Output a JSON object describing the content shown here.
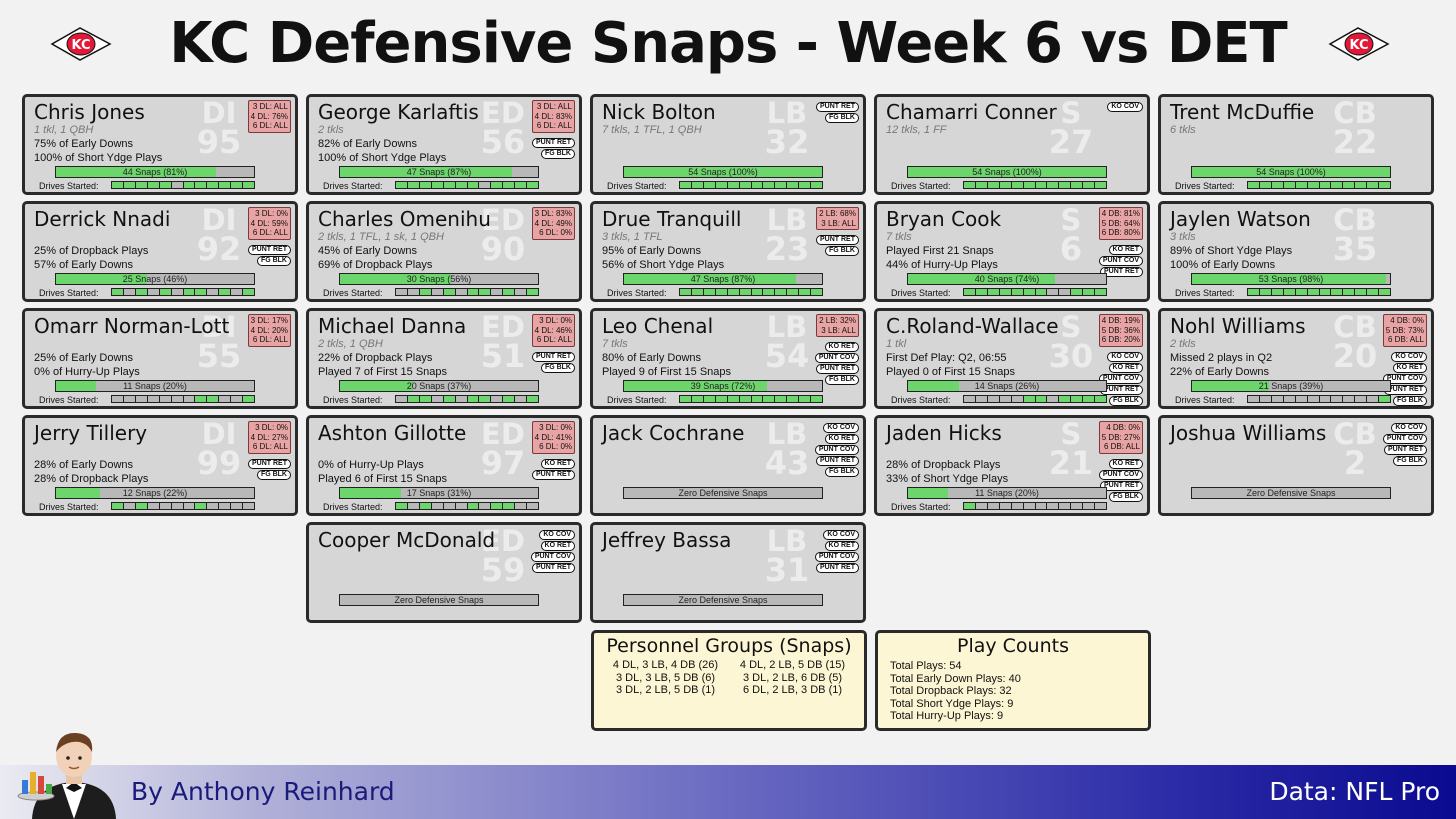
{
  "title": "KC Defensive Snaps - Week 6 vs DET",
  "drives_label": "Drives Started:",
  "players": [
    {
      "name": "Chris Jones",
      "stats": "1 tkl, 1 QBH",
      "notes": [
        "75% of Early Downs",
        "100% of Short Ydge Plays"
      ],
      "bar_label": "44 Snaps (81%)",
      "snap_fraction": 0.81,
      "pos": "DI",
      "number": "95",
      "alignment": [
        "3 DL: ALL",
        "4 DL: 76%",
        "6 DL: ALL"
      ],
      "special_teams": [],
      "drives": [
        1,
        1,
        1,
        1,
        1,
        0,
        1,
        1,
        1,
        1,
        1,
        1
      ],
      "col": 0,
      "row": 0
    },
    {
      "name": "George Karlaftis",
      "stats": "2 tkls",
      "notes": [
        "82% of Early Downs",
        "100% of Short Ydge Plays"
      ],
      "bar_label": "47 Snaps (87%)",
      "snap_fraction": 0.87,
      "pos": "ED",
      "number": "56",
      "alignment": [
        "3 DL: ALL",
        "4 DL: 83%",
        "6 DL: ALL"
      ],
      "special_teams": [
        "PUNT RET",
        "FG BLK"
      ],
      "drives": [
        1,
        1,
        1,
        1,
        1,
        1,
        1,
        0,
        1,
        1,
        1,
        1
      ],
      "col": 1,
      "row": 0
    },
    {
      "name": "Nick Bolton",
      "stats": "7 tkls, 1 TFL, 1 QBH",
      "notes": [],
      "bar_label": "54 Snaps (100%)",
      "snap_fraction": 1.0,
      "pos": "LB",
      "number": "32",
      "alignment": [],
      "special_teams": [
        "PUNT RET",
        "FG BLK"
      ],
      "drives": [
        1,
        1,
        1,
        1,
        1,
        1,
        1,
        1,
        1,
        1,
        1,
        1
      ],
      "col": 2,
      "row": 0
    },
    {
      "name": "Chamarri Conner",
      "stats": "12 tkls, 1 FF",
      "notes": [],
      "bar_label": "54 Snaps (100%)",
      "snap_fraction": 1.0,
      "pos": "S",
      "number": "27",
      "alignment": [],
      "special_teams": [
        "KO COV"
      ],
      "drives": [
        1,
        1,
        1,
        1,
        1,
        1,
        1,
        1,
        1,
        1,
        1,
        1
      ],
      "col": 3,
      "row": 0
    },
    {
      "name": "Trent McDuffie",
      "stats": "6 tkls",
      "notes": [],
      "bar_label": "54 Snaps (100%)",
      "snap_fraction": 1.0,
      "pos": "CB",
      "number": "22",
      "alignment": [],
      "special_teams": [],
      "drives": [
        1,
        1,
        1,
        1,
        1,
        1,
        1,
        1,
        1,
        1,
        1,
        1
      ],
      "col": 4,
      "row": 0
    },
    {
      "name": "Derrick Nnadi",
      "stats": "",
      "notes": [
        "25% of Dropback Plays",
        "57% of Early Downs"
      ],
      "bar_label": "25 Snaps (46%)",
      "snap_fraction": 0.46,
      "pos": "DI",
      "number": "92",
      "alignment": [
        "3 DL:  0%",
        "4 DL: 59%",
        "6 DL: ALL"
      ],
      "special_teams": [
        "PUNT RET",
        "FG BLK"
      ],
      "drives": [
        1,
        0,
        1,
        0,
        1,
        0,
        1,
        1,
        0,
        1,
        0,
        1
      ],
      "col": 0,
      "row": 1
    },
    {
      "name": "Charles Omenihu",
      "stats": "2 tkls, 1 TFL, 1 sk, 1 QBH",
      "notes": [
        "45% of Early Downs",
        "69% of Dropback Plays"
      ],
      "bar_label": "30 Snaps (56%)",
      "snap_fraction": 0.56,
      "pos": "ED",
      "number": "90",
      "alignment": [
        "3 DL: 83%",
        "4 DL: 49%",
        "6 DL:  0%"
      ],
      "special_teams": [],
      "drives": [
        0,
        0,
        1,
        0,
        1,
        0,
        1,
        1,
        0,
        1,
        0,
        1
      ],
      "col": 1,
      "row": 1
    },
    {
      "name": "Drue Tranquill",
      "stats": "3 tkls, 1 TFL",
      "notes": [
        "95% of Early Downs",
        "56% of Short Ydge Plays"
      ],
      "bar_label": "47 Snaps (87%)",
      "snap_fraction": 0.87,
      "pos": "LB",
      "number": "23",
      "alignment": [
        "2 LB: 68%",
        "3 LB: ALL"
      ],
      "special_teams": [
        "PUNT RET",
        "FG BLK"
      ],
      "drives": [
        1,
        1,
        1,
        1,
        1,
        1,
        1,
        1,
        1,
        1,
        1,
        1
      ],
      "col": 2,
      "row": 1
    },
    {
      "name": "Bryan Cook",
      "stats": "7 tkls",
      "notes": [
        "Played First 21 Snaps",
        "44% of Hurry-Up Plays"
      ],
      "bar_label": "40 Snaps (74%)",
      "snap_fraction": 0.74,
      "pos": "S",
      "number": "6",
      "alignment": [
        "4 DB: 81%",
        "5 DB: 64%",
        "6 DB: 80%"
      ],
      "special_teams": [
        "KO RET",
        "PUNT COV",
        "PUNT RET"
      ],
      "drives": [
        1,
        1,
        1,
        1,
        1,
        1,
        1,
        0,
        0,
        1,
        1,
        1
      ],
      "col": 3,
      "row": 1
    },
    {
      "name": "Jaylen Watson",
      "stats": "3 tkls",
      "notes": [
        "89% of Short Ydge Plays",
        "100% of Early Downs"
      ],
      "bar_label": "53 Snaps (98%)",
      "snap_fraction": 0.98,
      "pos": "CB",
      "number": "35",
      "alignment": [],
      "special_teams": [],
      "drives": [
        1,
        1,
        1,
        1,
        1,
        1,
        1,
        1,
        1,
        1,
        1,
        1
      ],
      "col": 4,
      "row": 1
    },
    {
      "name": "Omarr Norman-Lott",
      "stats": "",
      "notes": [
        "25% of Early Downs",
        "0% of Hurry-Up Plays"
      ],
      "bar_label": "11 Snaps (20%)",
      "snap_fraction": 0.2,
      "pos": "DI",
      "number": "55",
      "alignment": [
        "3 DL: 17%",
        "4 DL: 20%",
        "6 DL: ALL"
      ],
      "special_teams": [],
      "drives": [
        0,
        0,
        0,
        0,
        0,
        0,
        0,
        1,
        1,
        0,
        0,
        1
      ],
      "col": 0,
      "row": 2
    },
    {
      "name": "Michael Danna",
      "stats": "2 tkls, 1 QBH",
      "notes": [
        "22% of Dropback Plays",
        "Played 7 of First 15 Snaps"
      ],
      "bar_label": "20 Snaps (37%)",
      "snap_fraction": 0.37,
      "pos": "ED",
      "number": "51",
      "alignment": [
        "3 DL:  0%",
        "4 DL: 46%",
        "6 DL: ALL"
      ],
      "special_teams": [
        "PUNT RET",
        "FG BLK"
      ],
      "drives": [
        0,
        1,
        1,
        0,
        1,
        0,
        1,
        1,
        0,
        1,
        0,
        1
      ],
      "col": 1,
      "row": 2
    },
    {
      "name": "Leo Chenal",
      "stats": "7 tkls",
      "notes": [
        "80% of Early Downs",
        "Played 9 of First 15 Snaps"
      ],
      "bar_label": "39 Snaps (72%)",
      "snap_fraction": 0.72,
      "pos": "LB",
      "number": "54",
      "alignment": [
        "2 LB: 32%",
        "3 LB: ALL"
      ],
      "special_teams": [
        "KO RET",
        "PUNT COV",
        "PUNT RET",
        "FG BLK"
      ],
      "drives": [
        1,
        1,
        1,
        1,
        1,
        1,
        1,
        1,
        1,
        1,
        1,
        1
      ],
      "col": 2,
      "row": 2
    },
    {
      "name": "C.Roland-Wallace",
      "stats": "1 tkl",
      "notes": [
        "First Def Play: Q2, 06:55",
        "Played 0 of First 15 Snaps"
      ],
      "bar_label": "14 Snaps (26%)",
      "snap_fraction": 0.26,
      "pos": "S",
      "number": "30",
      "alignment": [
        "4 DB: 19%",
        "5 DB: 36%",
        "6 DB: 20%"
      ],
      "special_teams": [
        "KO COV",
        "KO RET",
        "PUNT COV",
        "PUNT RET",
        "FG BLK"
      ],
      "drives": [
        0,
        0,
        0,
        0,
        0,
        1,
        1,
        0,
        1,
        1,
        1,
        1
      ],
      "col": 3,
      "row": 2
    },
    {
      "name": "Nohl Williams",
      "stats": "2 tkls",
      "notes": [
        "Missed 2 plays in Q2",
        "22% of Early Downs"
      ],
      "bar_label": "21 Snaps (39%)",
      "snap_fraction": 0.39,
      "pos": "CB",
      "number": "20",
      "alignment": [
        "4 DB:  0%",
        "5 DB: 73%",
        "6 DB: ALL"
      ],
      "special_teams": [
        "KO COV",
        "KO RET",
        "PUNT COV",
        "PUNT RET",
        "FG BLK"
      ],
      "drives": [
        0,
        0,
        0,
        0,
        0,
        0,
        0,
        0,
        0,
        0,
        0,
        1
      ],
      "col": 4,
      "row": 2
    },
    {
      "name": "Jerry Tillery",
      "stats": "",
      "notes": [
        "28% of Early Downs",
        "28% of Dropback Plays"
      ],
      "bar_label": "12 Snaps (22%)",
      "snap_fraction": 0.22,
      "pos": "DI",
      "number": "99",
      "alignment": [
        "3 DL:  0%",
        "4 DL: 27%",
        "6 DL: ALL"
      ],
      "special_teams": [
        "PUNT RET",
        "FG BLK"
      ],
      "drives": [
        1,
        0,
        1,
        0,
        0,
        0,
        0,
        1,
        0,
        0,
        0,
        0
      ],
      "col": 0,
      "row": 3
    },
    {
      "name": "Ashton Gillotte",
      "stats": "",
      "notes": [
        "0% of Hurry-Up Plays",
        "Played 6 of First 15 Snaps"
      ],
      "bar_label": "17 Snaps (31%)",
      "snap_fraction": 0.31,
      "pos": "ED",
      "number": "97",
      "alignment": [
        "3 DL:  0%",
        "4 DL: 41%",
        "6 DL:  0%"
      ],
      "special_teams": [
        "KO RET",
        "PUNT RET"
      ],
      "drives": [
        1,
        0,
        1,
        0,
        0,
        0,
        1,
        0,
        1,
        1,
        0,
        0
      ],
      "col": 1,
      "row": 3
    },
    {
      "name": "Jack Cochrane",
      "stats": "",
      "notes": [],
      "bar_label": "Zero Defensive Snaps",
      "snap_fraction": 0,
      "pos": "LB",
      "number": "43",
      "alignment": [],
      "special_teams": [
        "KO COV",
        "KO RET",
        "PUNT COV",
        "PUNT RET",
        "FG BLK"
      ],
      "drives": [],
      "col": 2,
      "row": 3
    },
    {
      "name": "Jaden Hicks",
      "stats": "",
      "notes": [
        "28% of Dropback Plays",
        "33% of Short Ydge Plays"
      ],
      "bar_label": "11 Snaps (20%)",
      "snap_fraction": 0.2,
      "pos": "S",
      "number": "21",
      "alignment": [
        "4 DB:  0%",
        "5 DB: 27%",
        "6 DB: ALL"
      ],
      "special_teams": [
        "KO RET",
        "PUNT COV",
        "PUNT RET",
        "FG BLK"
      ],
      "drives": [
        1,
        0,
        0,
        0,
        0,
        0,
        0,
        0,
        0,
        0,
        0,
        0
      ],
      "col": 3,
      "row": 3
    },
    {
      "name": "Joshua Williams",
      "stats": "",
      "notes": [],
      "bar_label": "Zero Defensive Snaps",
      "snap_fraction": 0,
      "pos": "CB",
      "number": "2",
      "alignment": [],
      "special_teams": [
        "KO COV",
        "PUNT COV",
        "PUNT RET",
        "FG BLK"
      ],
      "drives": [],
      "col": 4,
      "row": 3
    },
    {
      "name": "Cooper McDonald",
      "stats": "",
      "notes": [],
      "bar_label": "Zero Defensive Snaps",
      "snap_fraction": 0,
      "pos": "ED",
      "number": "59",
      "alignment": [],
      "special_teams": [
        "KO COV",
        "KO RET",
        "PUNT COV",
        "PUNT RET"
      ],
      "drives": [],
      "col": 1,
      "row": 4
    },
    {
      "name": "Jeffrey Bassa",
      "stats": "",
      "notes": [],
      "bar_label": "Zero Defensive Snaps",
      "snap_fraction": 0,
      "pos": "LB",
      "number": "31",
      "alignment": [],
      "special_teams": [
        "KO COV",
        "KO RET",
        "PUNT COV",
        "PUNT RET"
      ],
      "drives": [],
      "col": 2,
      "row": 4
    }
  ],
  "personnel": {
    "title": "Personnel Groups (Snaps)",
    "groups": [
      "4 DL, 3 LB, 4 DB (26)",
      "4 DL, 2 LB, 5 DB (15)",
      "3 DL, 3 LB, 5 DB (6)",
      "3 DL, 2 LB, 6 DB (5)",
      "3 DL, 2 LB, 5 DB (1)",
      "6 DL, 2 LB, 3 DB (1)"
    ]
  },
  "play_counts": {
    "title": "Play Counts",
    "lines": [
      "Total Plays: 54",
      "Total Early Down Plays: 40",
      "Total Dropback Plays: 32",
      "Total Short Ydge Plays: 9",
      "Total Hurry-Up Plays: 9"
    ]
  },
  "footer": {
    "author": "By Anthony Reinhard",
    "source": "Data: NFL Pro"
  },
  "colors": {
    "bar_fill": "#6cd66c",
    "card_bg": "#d6d6d6",
    "align_bg": "#e8a4a4",
    "panel_bg": "#fdf6d4",
    "chiefs_red": "#e31837"
  }
}
